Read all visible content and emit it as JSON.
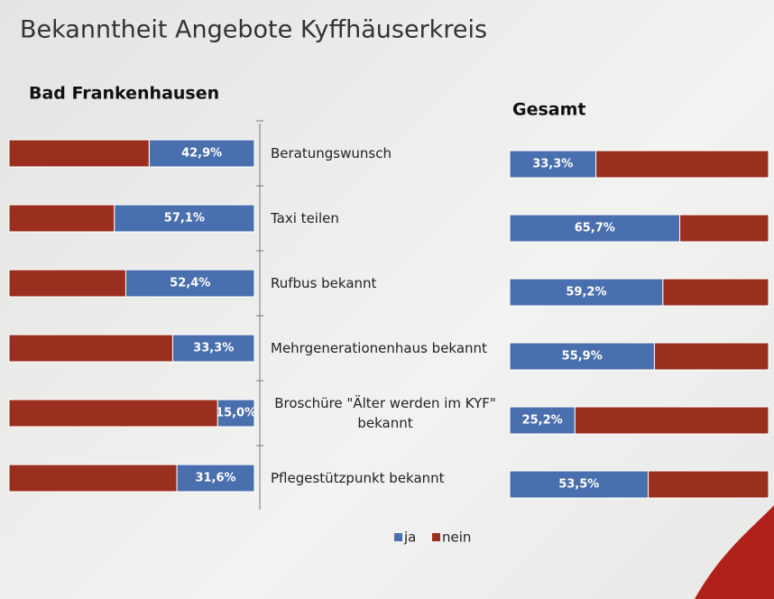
{
  "title": "Bekanntheit Angebote Kyffhäuserkreis",
  "categories": [
    "Beratungswunsch",
    "Taxi teilen",
    "Rufbus bekannt",
    "Mehrgenerationenhaus bekannt",
    "Broschüre \"Älter werden im KYF\" bekannt",
    "Pflegestützpunkt bekannt"
  ],
  "chart_data": [
    {
      "type": "bar",
      "subtitle": "Bad Frankenhausen",
      "direction": "left",
      "xlim": [
        0,
        100
      ],
      "series": [
        {
          "name": "ja",
          "color": "#4a6fae",
          "values": [
            42.9,
            57.1,
            52.4,
            33.3,
            15.0,
            31.6
          ],
          "value_labels": [
            "42,9%",
            "57,1%",
            "52,4%",
            "33,3%",
            "15,0%",
            "31,6%"
          ]
        },
        {
          "name": "nein",
          "color": "#9b2f1f",
          "values": [
            57.1,
            42.9,
            47.6,
            66.7,
            85.0,
            68.4
          ]
        }
      ]
    },
    {
      "type": "bar",
      "subtitle": "Gesamt",
      "direction": "right",
      "xlim": [
        0,
        100
      ],
      "series": [
        {
          "color": "#4a6fae",
          "values": [
            33.3,
            65.7,
            59.2,
            55.9,
            25.2,
            53.5
          ],
          "value_labels": [
            "33,3%",
            "65,7%",
            "59,2%",
            "55,9%",
            "25,2%",
            "53,5%"
          ]
        },
        {
          "color": "#9b2f1f",
          "values": [
            66.7,
            34.3,
            40.8,
            44.1,
            74.8,
            46.5
          ]
        }
      ]
    }
  ]
}
